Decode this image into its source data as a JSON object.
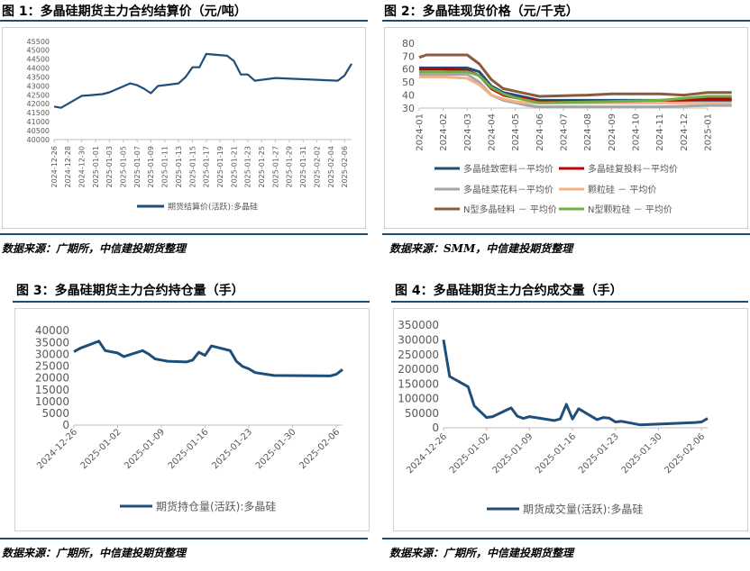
{
  "figures": {
    "f1": {
      "title": "图 1：多晶硅期货主力合约结算价（元/吨）",
      "source": "数据来源：广期所，中信建投期货整理"
    },
    "f2": {
      "title": "图 2：多晶硅现货价格（元/千克）",
      "source": "数据来源：SMM，中信建投期货整理"
    },
    "f3": {
      "title": "图 3：多晶硅期货主力合约持仓量（手）",
      "source": "数据来源：广期所，中信建投期货整理"
    },
    "f4": {
      "title": "图 4：多晶硅期货主力合约成交量（手）",
      "source": "数据来源：广期所，中信建投期货整理"
    }
  },
  "chart_data": [
    {
      "type": "line",
      "title": "图 1：多晶硅期货主力合约结算价（元/吨）",
      "ylim": [
        40000,
        45500
      ],
      "yticks": [
        40000,
        40500,
        41000,
        41500,
        42000,
        42500,
        43000,
        43500,
        44000,
        44500,
        45000,
        45500
      ],
      "xticks": [
        "2024-12-26",
        "2024-12-28",
        "2024-12-30",
        "2025-01-01",
        "2025-01-03",
        "2025-01-05",
        "2025-01-07",
        "2025-01-09",
        "2025-01-11",
        "2025-01-13",
        "2025-01-15",
        "2025-01-17",
        "2025-01-19",
        "2025-01-21",
        "2025-01-23",
        "2025-01-25",
        "2025-01-27",
        "2025-01-29",
        "2025-01-31",
        "2025-02-02",
        "2025-02-04",
        "2025-02-06"
      ],
      "x_start": "2024-12-26",
      "series": [
        {
          "name": "期货结算价(活跃):多晶硅",
          "color": "#1f4e79",
          "points": [
            [
              "2024-12-26",
              41850
            ],
            [
              "2024-12-27",
              41780
            ],
            [
              "2024-12-30",
              42450
            ],
            [
              "2024-12-31",
              42480
            ],
            [
              "2025-01-02",
              42550
            ],
            [
              "2025-01-03",
              42650
            ],
            [
              "2025-01-06",
              43150
            ],
            [
              "2025-01-07",
              43050
            ],
            [
              "2025-01-08",
              42850
            ],
            [
              "2025-01-09",
              42600
            ],
            [
              "2025-01-10",
              43000
            ],
            [
              "2025-01-13",
              43150
            ],
            [
              "2025-01-14",
              43500
            ],
            [
              "2025-01-15",
              44050
            ],
            [
              "2025-01-16",
              44050
            ],
            [
              "2025-01-17",
              44800
            ],
            [
              "2025-01-20",
              44700
            ],
            [
              "2025-01-21",
              44400
            ],
            [
              "2025-01-22",
              43650
            ],
            [
              "2025-01-23",
              43650
            ],
            [
              "2025-01-24",
              43300
            ],
            [
              "2025-01-27",
              43450
            ],
            [
              "2025-02-05",
              43300
            ],
            [
              "2025-02-06",
              43600
            ],
            [
              "2025-02-07",
              44250
            ]
          ]
        }
      ],
      "grid": false,
      "legend": "bottom"
    },
    {
      "type": "line",
      "title": "图 2：多晶硅现货价格（元/千克）",
      "ylim": [
        30,
        80
      ],
      "yticks": [
        30,
        40,
        50,
        60,
        70,
        80
      ],
      "xticks": [
        "2024-01",
        "2024-02",
        "2024-03",
        "2024-04",
        "2024-05",
        "2024-06",
        "2024-07",
        "2024-08",
        "2024-09",
        "2024-10",
        "2024-11",
        "2024-12",
        "2025-01"
      ],
      "x_unit": "month index from 2024-01",
      "series": [
        {
          "name": "多晶硅致密料－平均价",
          "color": "#1f4e79",
          "points": [
            [
              0,
              61
            ],
            [
              1,
              61
            ],
            [
              2,
              61
            ],
            [
              2.5,
              58
            ],
            [
              3,
              47
            ],
            [
              3.5,
              42
            ],
            [
              4,
              40
            ],
            [
              4.5,
              38
            ],
            [
              5,
              36
            ],
            [
              8,
              36
            ],
            [
              10,
              36
            ],
            [
              12,
              36
            ],
            [
              13,
              36
            ]
          ]
        },
        {
          "name": "多晶硅复投料－平均价",
          "color": "#c00000",
          "points": [
            [
              0,
              60
            ],
            [
              1,
              60
            ],
            [
              2,
              59
            ],
            [
              2.5,
              55
            ],
            [
              3,
              45
            ],
            [
              3.5,
              40
            ],
            [
              4,
              38
            ],
            [
              4.5,
              37
            ],
            [
              5,
              35
            ],
            [
              8,
              35
            ],
            [
              10,
              35
            ],
            [
              12,
              37
            ],
            [
              13,
              37
            ]
          ]
        },
        {
          "name": "多晶硅菜花料－平均价",
          "color": "#a6a6a6",
          "points": [
            [
              0,
              56
            ],
            [
              1,
              56
            ],
            [
              2,
              56
            ],
            [
              2.5,
              50
            ],
            [
              3,
              40
            ],
            [
              3.5,
              36
            ],
            [
              4,
              34
            ],
            [
              4.5,
              32
            ],
            [
              5,
              31
            ],
            [
              8,
              31
            ],
            [
              10,
              31
            ],
            [
              12,
              32
            ],
            [
              13,
              32
            ]
          ]
        },
        {
          "name": "颗粒硅 － 平均价",
          "color": "#f4b183",
          "points": [
            [
              0,
              54
            ],
            [
              1,
              54
            ],
            [
              2,
              53
            ],
            [
              2.5,
              48
            ],
            [
              3,
              40
            ],
            [
              3.5,
              37
            ],
            [
              4,
              35
            ],
            [
              4.5,
              34
            ],
            [
              5,
              34
            ],
            [
              8,
              34
            ],
            [
              10,
              34
            ],
            [
              12,
              34
            ],
            [
              13,
              34
            ]
          ]
        },
        {
          "name": "N型多晶硅料 － 平均价",
          "color": "#8b5a3c",
          "points": [
            [
              0,
              69
            ],
            [
              0.3,
              71
            ],
            [
              2,
              71
            ],
            [
              2.5,
              64
            ],
            [
              3,
              52
            ],
            [
              3.5,
              45
            ],
            [
              4,
              43
            ],
            [
              4.5,
              41
            ],
            [
              5,
              39
            ],
            [
              7,
              40
            ],
            [
              8,
              41
            ],
            [
              10,
              41
            ],
            [
              11,
              40
            ],
            [
              12,
              42
            ],
            [
              13,
              42
            ]
          ]
        },
        {
          "name": "N型颗粒硅 － 平均价",
          "color": "#70ad47",
          "points": [
            [
              0,
              58
            ],
            [
              1,
              58
            ],
            [
              2,
              58
            ],
            [
              2.5,
              55
            ],
            [
              3,
              46
            ],
            [
              3.5,
              41
            ],
            [
              4,
              38
            ],
            [
              4.5,
              36
            ],
            [
              5,
              34
            ],
            [
              8,
              35
            ],
            [
              10,
              36
            ],
            [
              12,
              39
            ],
            [
              13,
              39
            ]
          ]
        }
      ],
      "grid": false,
      "legend": "bottom"
    },
    {
      "type": "line",
      "title": "图 3：多晶硅期货主力合约持仓量（手）",
      "ylim": [
        0,
        40000
      ],
      "yticks": [
        0,
        5000,
        10000,
        15000,
        20000,
        25000,
        30000,
        35000,
        40000
      ],
      "xticks": [
        "2024-12-26",
        "2025-01-02",
        "2025-01-09",
        "2025-01-16",
        "2025-01-23",
        "2025-01-30",
        "2025-02-06"
      ],
      "x_start": "2024-12-26",
      "series": [
        {
          "name": "期货持仓量(活跃):多晶硅",
          "color": "#1f4e79",
          "points": [
            [
              "2024-12-26",
              31000
            ],
            [
              "2024-12-27",
              32500
            ],
            [
              "2024-12-30",
              35500
            ],
            [
              "2024-12-31",
              31500
            ],
            [
              "2025-01-02",
              30500
            ],
            [
              "2025-01-03",
              29000
            ],
            [
              "2025-01-06",
              31500
            ],
            [
              "2025-01-07",
              30000
            ],
            [
              "2025-01-08",
              28000
            ],
            [
              "2025-01-09",
              27500
            ],
            [
              "2025-01-10",
              27000
            ],
            [
              "2025-01-13",
              26700
            ],
            [
              "2025-01-14",
              27500
            ],
            [
              "2025-01-15",
              30800
            ],
            [
              "2025-01-16",
              29500
            ],
            [
              "2025-01-17",
              33500
            ],
            [
              "2025-01-20",
              31500
            ],
            [
              "2025-01-21",
              27000
            ],
            [
              "2025-01-22",
              24800
            ],
            [
              "2025-01-23",
              23800
            ],
            [
              "2025-01-24",
              22200
            ],
            [
              "2025-01-27",
              21000
            ],
            [
              "2025-02-05",
              20800
            ],
            [
              "2025-02-06",
              21500
            ],
            [
              "2025-02-07",
              23500
            ]
          ]
        }
      ],
      "grid": false,
      "legend": "bottom"
    },
    {
      "type": "line",
      "title": "图 4：多晶硅期货主力合约成交量（手）",
      "ylim": [
        0,
        350000
      ],
      "yticks": [
        0,
        50000,
        100000,
        150000,
        200000,
        250000,
        300000,
        350000
      ],
      "xticks": [
        "2024-12-26",
        "2025-01-02",
        "2025-01-09",
        "2025-01-16",
        "2025-01-23",
        "2025-01-30",
        "2025-02-06"
      ],
      "x_start": "2024-12-26",
      "series": [
        {
          "name": "期货成交量(活跃):多晶硅",
          "color": "#1f4e79",
          "points": [
            [
              "2024-12-26",
              300000
            ],
            [
              "2024-12-27",
              175000
            ],
            [
              "2024-12-30",
              140000
            ],
            [
              "2024-12-31",
              75000
            ],
            [
              "2025-01-02",
              35000
            ],
            [
              "2025-01-03",
              38000
            ],
            [
              "2025-01-06",
              68000
            ],
            [
              "2025-01-07",
              40000
            ],
            [
              "2025-01-08",
              32000
            ],
            [
              "2025-01-09",
              38000
            ],
            [
              "2025-01-10",
              35000
            ],
            [
              "2025-01-13",
              25000
            ],
            [
              "2025-01-14",
              30000
            ],
            [
              "2025-01-15",
              80000
            ],
            [
              "2025-01-16",
              30000
            ],
            [
              "2025-01-17",
              65000
            ],
            [
              "2025-01-20",
              28000
            ],
            [
              "2025-01-21",
              35000
            ],
            [
              "2025-01-22",
              33000
            ],
            [
              "2025-01-23",
              20000
            ],
            [
              "2025-01-24",
              22000
            ],
            [
              "2025-01-27",
              10000
            ],
            [
              "2025-02-05",
              18000
            ],
            [
              "2025-02-06",
              20000
            ],
            [
              "2025-02-07",
              32000
            ]
          ]
        }
      ],
      "grid": false,
      "legend": "bottom"
    }
  ]
}
